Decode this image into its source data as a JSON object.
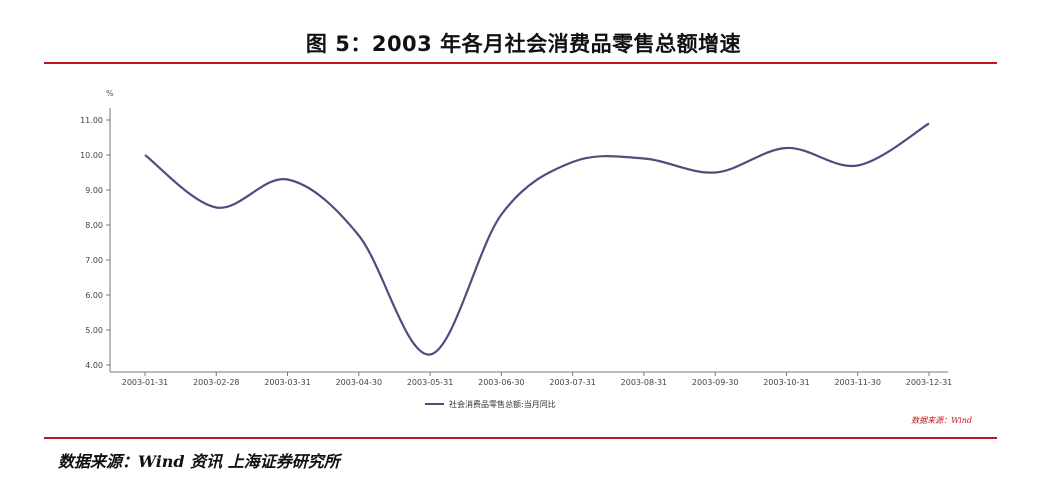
{
  "title": "图 5：2003 年各月社会消费品零售总额增速",
  "footer_source": "数据来源：Wind 资讯 上海证券研究所",
  "chart_data": {
    "type": "line",
    "unit_label": "%",
    "categories": [
      "2003-01-31",
      "2003-02-28",
      "2003-03-31",
      "2003-04-30",
      "2003-05-31",
      "2003-06-30",
      "2003-07-31",
      "2003-08-31",
      "2003-09-30",
      "2003-10-31",
      "2003-11-30",
      "2003-12-31"
    ],
    "series": [
      {
        "name": "社会消费品零售总额:当月同比",
        "color": "#4a4f7d",
        "values": [
          10.0,
          8.5,
          9.3,
          7.7,
          4.3,
          8.3,
          9.8,
          9.9,
          9.5,
          10.2,
          9.7,
          10.9
        ]
      }
    ],
    "y_ticks": [
      "4.00",
      "5.00",
      "6.00",
      "7.00",
      "8.00",
      "9.00",
      "10.00",
      "11.00"
    ],
    "ylim": [
      4,
      11
    ],
    "watermark": "数据来源：Wind",
    "grid": false,
    "legend_position": "bottom"
  }
}
